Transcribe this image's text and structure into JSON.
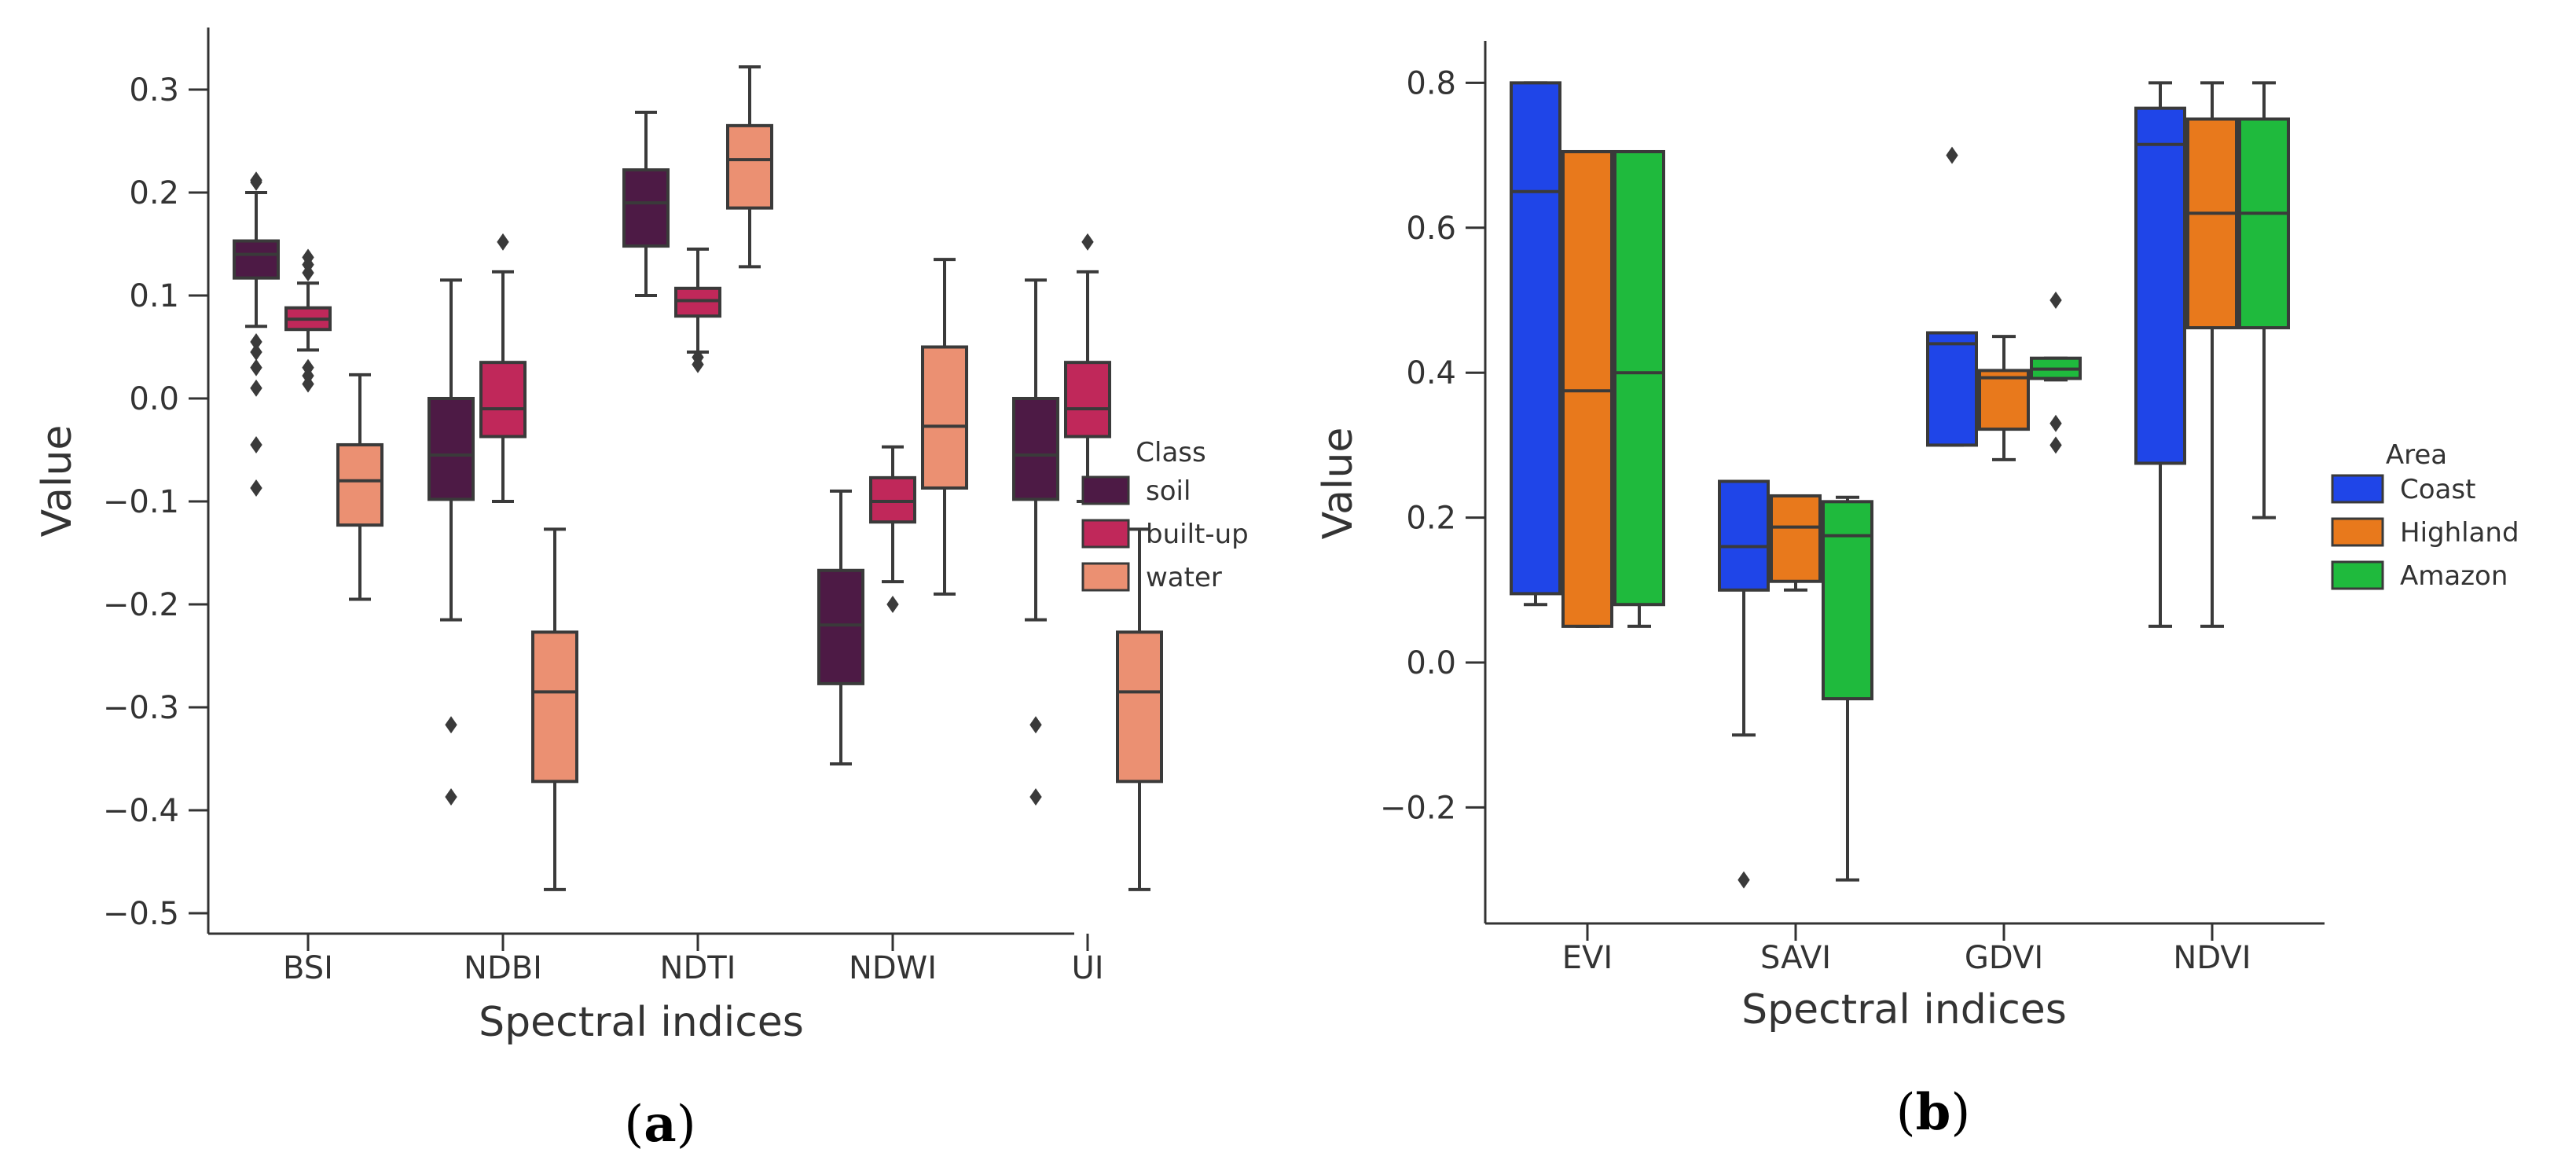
{
  "chart_data": [
    {
      "type": "box",
      "panel_label": "a",
      "xlabel": "Spectral indices",
      "ylabel": "Value",
      "ylim": [
        -0.52,
        0.36
      ],
      "yticks": [
        0.3,
        0.2,
        0.1,
        0.0,
        -0.1,
        -0.2,
        -0.3,
        -0.4,
        -0.5
      ],
      "ytick_labels": [
        "0.3",
        "0.2",
        "0.1",
        "0.0",
        "−0.1",
        "−0.2",
        "−0.3",
        "−0.4",
        "−0.5"
      ],
      "categories": [
        "BSI",
        "NDBI",
        "NDTI",
        "NDWI",
        "UI"
      ],
      "legend": {
        "title": "Class",
        "position": "right"
      },
      "series": [
        {
          "name": "soil",
          "color": "#4d1a45",
          "boxes": [
            {
              "min": 0.07,
              "q1": 0.117,
              "median": 0.14,
              "q3": 0.153,
              "max": 0.2,
              "outliers": [
                0.21,
                0.212,
                0.055,
                0.045,
                0.03,
                0.01,
                -0.045,
                -0.087
              ]
            },
            {
              "min": -0.215,
              "q1": -0.098,
              "median": -0.055,
              "q3": 0.0,
              "max": 0.115,
              "outliers": [
                -0.317,
                -0.387
              ]
            },
            {
              "min": 0.1,
              "q1": 0.148,
              "median": 0.19,
              "q3": 0.222,
              "max": 0.278,
              "outliers": []
            },
            {
              "min": -0.355,
              "q1": -0.277,
              "median": -0.22,
              "q3": -0.167,
              "max": -0.09,
              "outliers": []
            },
            {
              "min": -0.215,
              "q1": -0.098,
              "median": -0.055,
              "q3": 0.0,
              "max": 0.115,
              "outliers": [
                -0.317,
                -0.387
              ]
            }
          ]
        },
        {
          "name": "built-up",
          "color": "#c0285a",
          "boxes": [
            {
              "min": 0.047,
              "q1": 0.067,
              "median": 0.077,
              "q3": 0.088,
              "max": 0.112,
              "outliers": [
                0.137,
                0.13,
                0.122,
                0.03,
                0.022,
                0.014
              ]
            },
            {
              "min": -0.1,
              "q1": -0.037,
              "median": -0.01,
              "q3": 0.035,
              "max": 0.123,
              "outliers": [
                0.152
              ]
            },
            {
              "min": 0.045,
              "q1": 0.08,
              "median": 0.095,
              "q3": 0.107,
              "max": 0.145,
              "outliers": [
                0.04,
                0.033
              ]
            },
            {
              "min": -0.178,
              "q1": -0.12,
              "median": -0.1,
              "q3": -0.077,
              "max": -0.047,
              "outliers": [
                -0.2
              ]
            },
            {
              "min": -0.1,
              "q1": -0.037,
              "median": -0.01,
              "q3": 0.035,
              "max": 0.123,
              "outliers": [
                0.152
              ]
            }
          ]
        },
        {
          "name": "water",
          "color": "#eb9072",
          "boxes": [
            {
              "min": -0.195,
              "q1": -0.123,
              "median": -0.08,
              "q3": -0.045,
              "max": 0.023,
              "outliers": []
            },
            {
              "min": -0.477,
              "q1": -0.372,
              "median": -0.285,
              "q3": -0.227,
              "max": -0.127,
              "outliers": []
            },
            {
              "min": 0.128,
              "q1": 0.185,
              "median": 0.232,
              "q3": 0.265,
              "max": 0.322,
              "outliers": []
            },
            {
              "min": -0.19,
              "q1": -0.087,
              "median": -0.027,
              "q3": 0.05,
              "max": 0.135,
              "outliers": []
            },
            {
              "min": -0.477,
              "q1": -0.372,
              "median": -0.285,
              "q3": -0.227,
              "max": -0.127,
              "outliers": []
            }
          ]
        }
      ]
    },
    {
      "type": "box",
      "panel_label": "b",
      "xlabel": "Spectral indices",
      "ylabel": "Value",
      "ylim": [
        -0.35,
        0.85
      ],
      "yticks": [
        0.8,
        0.6,
        0.4,
        0.2,
        0.0,
        -0.2
      ],
      "ytick_labels": [
        "0.8",
        "0.6",
        "0.4",
        "0.2",
        "0.0",
        "−0.2"
      ],
      "categories": [
        "EVI",
        "SAVI",
        "GDVI",
        "NDVI"
      ],
      "legend": {
        "title": "Area",
        "position": "right"
      },
      "series": [
        {
          "name": "Coast",
          "color": "#1f45e8",
          "boxes": [
            {
              "min": 0.08,
              "q1": 0.095,
              "median": 0.65,
              "q3": 0.8,
              "max": 0.8,
              "outliers": []
            },
            {
              "min": -0.1,
              "q1": 0.1,
              "median": 0.16,
              "q3": 0.25,
              "max": 0.25,
              "outliers": [
                -0.3
              ]
            },
            {
              "min": 0.3,
              "q1": 0.3,
              "median": 0.44,
              "q3": 0.455,
              "max": 0.455,
              "outliers": [
                0.7
              ]
            },
            {
              "min": 0.05,
              "q1": 0.275,
              "median": 0.715,
              "q3": 0.765,
              "max": 0.8,
              "outliers": []
            }
          ]
        },
        {
          "name": "Highland",
          "color": "#e8791c",
          "boxes": [
            {
              "min": 0.05,
              "q1": 0.05,
              "median": 0.375,
              "q3": 0.705,
              "max": 0.705,
              "outliers": []
            },
            {
              "min": 0.1,
              "q1": 0.112,
              "median": 0.187,
              "q3": 0.23,
              "max": 0.23,
              "outliers": []
            },
            {
              "min": 0.28,
              "q1": 0.322,
              "median": 0.393,
              "q3": 0.403,
              "max": 0.45,
              "outliers": []
            },
            {
              "min": 0.05,
              "q1": 0.462,
              "median": 0.62,
              "q3": 0.75,
              "max": 0.8,
              "outliers": []
            }
          ]
        },
        {
          "name": "Amazon",
          "color": "#1fba3d",
          "boxes": [
            {
              "min": 0.05,
              "q1": 0.08,
              "median": 0.4,
              "q3": 0.705,
              "max": 0.705,
              "outliers": []
            },
            {
              "min": -0.3,
              "q1": -0.05,
              "median": 0.175,
              "q3": 0.222,
              "max": 0.228,
              "outliers": []
            },
            {
              "min": 0.39,
              "q1": 0.392,
              "median": 0.405,
              "q3": 0.42,
              "max": 0.42,
              "outliers": [
                0.5,
                0.33,
                0.3
              ]
            },
            {
              "min": 0.2,
              "q1": 0.462,
              "median": 0.62,
              "q3": 0.75,
              "max": 0.8,
              "outliers": []
            }
          ]
        }
      ]
    }
  ]
}
